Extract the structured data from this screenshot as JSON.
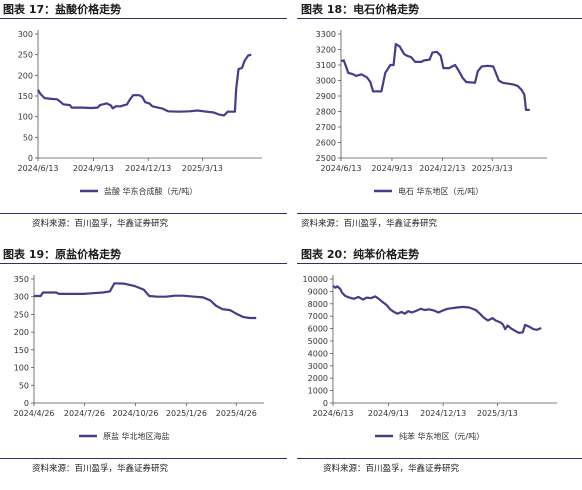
{
  "panels": [
    {
      "title": "图表 17：盐酸价格走势",
      "source": "资料来源：百川盈孚，华鑫证券研究"
    },
    {
      "title": "图表 18：电石价格走势",
      "source": "资料来源：百川盈孚，华鑫证券研究"
    },
    {
      "title": "图表 19：原盐价格走势",
      "source": "资料来源：百川盈孚，华鑫证券研究"
    },
    {
      "title": "图表 20：纯苯价格走势",
      "source": "资料来源：百川盈孚，华鑫证券研究"
    }
  ],
  "colors": {
    "line": "#4b3a8c",
    "axis": "#555555"
  },
  "chart_data": [
    {
      "type": "line",
      "ylim": [
        0,
        300
      ],
      "yticks": [
        "0",
        "50",
        "100",
        "150",
        "200",
        "250",
        "300"
      ],
      "xlim": [
        "2024-06-13",
        "2025-06-20"
      ],
      "xticks": [
        {
          "date": "2024-06-13",
          "label": "2024/6/13"
        },
        {
          "date": "2024-09-13",
          "label": "2024/9/13"
        },
        {
          "date": "2024-12-13",
          "label": "2024/12/13"
        },
        {
          "date": "2025-03-13",
          "label": "2025/3/13"
        }
      ],
      "series": [
        {
          "name": "盐酸 华东合成酸（元/吨）",
          "points": [
            [
              "2024-06-13",
              165
            ],
            [
              "2024-06-17",
              155
            ],
            [
              "2024-06-24",
              145
            ],
            [
              "2024-07-05",
              143
            ],
            [
              "2024-07-15",
              142
            ],
            [
              "2024-07-25",
              130
            ],
            [
              "2024-08-05",
              128
            ],
            [
              "2024-08-08",
              122
            ],
            [
              "2024-08-25",
              122
            ],
            [
              "2024-09-10",
              121
            ],
            [
              "2024-09-20",
              122
            ],
            [
              "2024-09-24",
              128
            ],
            [
              "2024-10-05",
              132
            ],
            [
              "2024-10-12",
              127
            ],
            [
              "2024-10-15",
              120
            ],
            [
              "2024-10-20",
              125
            ],
            [
              "2024-10-28",
              125
            ],
            [
              "2024-11-08",
              130
            ],
            [
              "2024-11-12",
              140
            ],
            [
              "2024-11-18",
              152
            ],
            [
              "2024-11-28",
              152
            ],
            [
              "2024-12-03",
              148
            ],
            [
              "2024-12-08",
              135
            ],
            [
              "2024-12-15",
              132
            ],
            [
              "2024-12-20",
              125
            ],
            [
              "2025-01-05",
              120
            ],
            [
              "2025-01-15",
              113
            ],
            [
              "2025-02-01",
              112
            ],
            [
              "2025-02-20",
              113
            ],
            [
              "2025-03-05",
              115
            ],
            [
              "2025-03-20",
              112
            ],
            [
              "2025-04-01",
              110
            ],
            [
              "2025-04-10",
              105
            ],
            [
              "2025-04-18",
              103
            ],
            [
              "2025-04-24",
              112
            ],
            [
              "2025-05-06",
              112
            ],
            [
              "2025-05-08",
              165
            ],
            [
              "2025-05-12",
              215
            ],
            [
              "2025-05-18",
              218
            ],
            [
              "2025-05-22",
              235
            ],
            [
              "2025-05-28",
              248
            ],
            [
              "2025-06-02",
              250
            ]
          ]
        }
      ]
    },
    {
      "type": "line",
      "ylim": [
        2500,
        3300
      ],
      "yticks": [
        "2500",
        "2600",
        "2700",
        "2800",
        "2900",
        "3000",
        "3100",
        "3200",
        "3300"
      ],
      "xlim": [
        "2024-06-13",
        "2025-06-20"
      ],
      "xticks": [
        {
          "date": "2024-06-13",
          "label": "2024/6/13"
        },
        {
          "date": "2024-09-13",
          "label": "2024/9/13"
        },
        {
          "date": "2024-12-13",
          "label": "2024/12/13"
        },
        {
          "date": "2025-03-13",
          "label": "2025/3/13"
        }
      ],
      "series": [
        {
          "name": "电石 华东地区（元/吨）",
          "points": [
            [
              "2024-06-13",
              3125
            ],
            [
              "2024-06-18",
              3130
            ],
            [
              "2024-06-22",
              3090
            ],
            [
              "2024-06-26",
              3050
            ],
            [
              "2024-07-05",
              3040
            ],
            [
              "2024-07-10",
              3030
            ],
            [
              "2024-07-20",
              3040
            ],
            [
              "2024-07-30",
              3020
            ],
            [
              "2024-08-05",
              2990
            ],
            [
              "2024-08-10",
              2930
            ],
            [
              "2024-08-25",
              2930
            ],
            [
              "2024-09-01",
              3050
            ],
            [
              "2024-09-10",
              3100
            ],
            [
              "2024-09-16",
              3100
            ],
            [
              "2024-09-20",
              3235
            ],
            [
              "2024-09-27",
              3220
            ],
            [
              "2024-10-05",
              3170
            ],
            [
              "2024-10-10",
              3160
            ],
            [
              "2024-10-18",
              3150
            ],
            [
              "2024-10-25",
              3120
            ],
            [
              "2024-11-05",
              3120
            ],
            [
              "2024-11-10",
              3130
            ],
            [
              "2024-11-20",
              3135
            ],
            [
              "2024-11-25",
              3180
            ],
            [
              "2024-12-03",
              3185
            ],
            [
              "2024-12-10",
              3160
            ],
            [
              "2024-12-15",
              3080
            ],
            [
              "2024-12-25",
              3080
            ],
            [
              "2025-01-05",
              3100
            ],
            [
              "2025-01-12",
              3060
            ],
            [
              "2025-01-18",
              3020
            ],
            [
              "2025-01-25",
              2990
            ],
            [
              "2025-02-10",
              2985
            ],
            [
              "2025-02-15",
              3060
            ],
            [
              "2025-02-22",
              3090
            ],
            [
              "2025-03-05",
              3095
            ],
            [
              "2025-03-15",
              3090
            ],
            [
              "2025-03-25",
              3000
            ],
            [
              "2025-04-01",
              2985
            ],
            [
              "2025-04-20",
              2975
            ],
            [
              "2025-04-28",
              2965
            ],
            [
              "2025-05-05",
              2940
            ],
            [
              "2025-05-10",
              2910
            ],
            [
              "2025-05-13",
              2810
            ],
            [
              "2025-05-20",
              2810
            ]
          ]
        }
      ]
    },
    {
      "type": "line",
      "ylim": [
        0,
        350
      ],
      "yticks": [
        "0",
        "50",
        "100",
        "150",
        "200",
        "250",
        "300",
        "350"
      ],
      "xlim": [
        "2024-04-26",
        "2025-06-15"
      ],
      "xticks": [
        {
          "date": "2024-04-26",
          "label": "2024/4/26"
        },
        {
          "date": "2024-07-26",
          "label": "2024/7/26"
        },
        {
          "date": "2024-10-26",
          "label": "2024/10/26"
        },
        {
          "date": "2025-01-26",
          "label": "2025/1/26"
        },
        {
          "date": "2025-04-26",
          "label": "2025/4/26"
        }
      ],
      "series": [
        {
          "name": "原盐 华北地区海盐",
          "points": [
            [
              "2024-04-26",
              302
            ],
            [
              "2024-05-08",
              302
            ],
            [
              "2024-05-12",
              312
            ],
            [
              "2024-06-05",
              312
            ],
            [
              "2024-06-10",
              308
            ],
            [
              "2024-07-05",
              308
            ],
            [
              "2024-07-25",
              308
            ],
            [
              "2024-08-10",
              310
            ],
            [
              "2024-08-28",
              312
            ],
            [
              "2024-09-10",
              315
            ],
            [
              "2024-09-18",
              338
            ],
            [
              "2024-10-05",
              337
            ],
            [
              "2024-10-25",
              330
            ],
            [
              "2024-11-10",
              320
            ],
            [
              "2024-11-20",
              302
            ],
            [
              "2024-12-05",
              300
            ],
            [
              "2024-12-20",
              300
            ],
            [
              "2025-01-05",
              303
            ],
            [
              "2025-01-20",
              303
            ],
            [
              "2025-02-10",
              300
            ],
            [
              "2025-02-25",
              298
            ],
            [
              "2025-03-10",
              290
            ],
            [
              "2025-03-20",
              275
            ],
            [
              "2025-04-01",
              265
            ],
            [
              "2025-04-15",
              262
            ],
            [
              "2025-04-26",
              252
            ],
            [
              "2025-05-08",
              243
            ],
            [
              "2025-05-20",
              240
            ],
            [
              "2025-06-01",
              240
            ]
          ]
        }
      ]
    },
    {
      "type": "line",
      "ylim": [
        0,
        10000
      ],
      "yticks": [
        "0",
        "1000",
        "2000",
        "3000",
        "4000",
        "5000",
        "6000",
        "7000",
        "8000",
        "9000",
        "10000"
      ],
      "xlim": [
        "2024-06-13",
        "2025-06-20"
      ],
      "xticks": [
        {
          "date": "2024-06-13",
          "label": "2024/6/13"
        },
        {
          "date": "2024-09-13",
          "label": "2024/9/13"
        },
        {
          "date": "2024-12-13",
          "label": "2024/12/13"
        },
        {
          "date": "2025-03-13",
          "label": "2025/3/13"
        }
      ],
      "series": [
        {
          "name": "纯苯 华东地区（元/吨）",
          "points": [
            [
              "2024-06-13",
              9450
            ],
            [
              "2024-06-17",
              9300
            ],
            [
              "2024-06-20",
              9400
            ],
            [
              "2024-06-25",
              9200
            ],
            [
              "2024-06-28",
              8900
            ],
            [
              "2024-07-03",
              8650
            ],
            [
              "2024-07-10",
              8500
            ],
            [
              "2024-07-18",
              8400
            ],
            [
              "2024-07-25",
              8550
            ],
            [
              "2024-08-02",
              8350
            ],
            [
              "2024-08-08",
              8500
            ],
            [
              "2024-08-15",
              8450
            ],
            [
              "2024-08-22",
              8600
            ],
            [
              "2024-08-28",
              8400
            ],
            [
              "2024-09-03",
              8150
            ],
            [
              "2024-09-10",
              7900
            ],
            [
              "2024-09-16",
              7550
            ],
            [
              "2024-09-22",
              7350
            ],
            [
              "2024-09-28",
              7200
            ],
            [
              "2024-10-05",
              7350
            ],
            [
              "2024-10-10",
              7200
            ],
            [
              "2024-10-16",
              7400
            ],
            [
              "2024-10-22",
              7300
            ],
            [
              "2024-10-30",
              7450
            ],
            [
              "2024-11-06",
              7600
            ],
            [
              "2024-11-12",
              7500
            ],
            [
              "2024-11-20",
              7550
            ],
            [
              "2024-11-28",
              7450
            ],
            [
              "2024-12-05",
              7300
            ],
            [
              "2024-12-12",
              7450
            ],
            [
              "2024-12-20",
              7600
            ],
            [
              "2025-01-05",
              7700
            ],
            [
              "2025-01-15",
              7750
            ],
            [
              "2025-01-25",
              7700
            ],
            [
              "2025-02-05",
              7500
            ],
            [
              "2025-02-12",
              7200
            ],
            [
              "2025-02-18",
              6900
            ],
            [
              "2025-02-25",
              6650
            ],
            [
              "2025-03-05",
              6850
            ],
            [
              "2025-03-10",
              6650
            ],
            [
              "2025-03-18",
              6500
            ],
            [
              "2025-03-22",
              6350
            ],
            [
              "2025-03-26",
              5950
            ],
            [
              "2025-03-30",
              6250
            ],
            [
              "2025-04-05",
              6000
            ],
            [
              "2025-04-12",
              5800
            ],
            [
              "2025-04-18",
              5650
            ],
            [
              "2025-04-24",
              5700
            ],
            [
              "2025-04-28",
              6300
            ],
            [
              "2025-05-05",
              6150
            ],
            [
              "2025-05-12",
              5950
            ],
            [
              "2025-05-18",
              5900
            ],
            [
              "2025-05-25",
              6050
            ]
          ]
        }
      ]
    }
  ]
}
